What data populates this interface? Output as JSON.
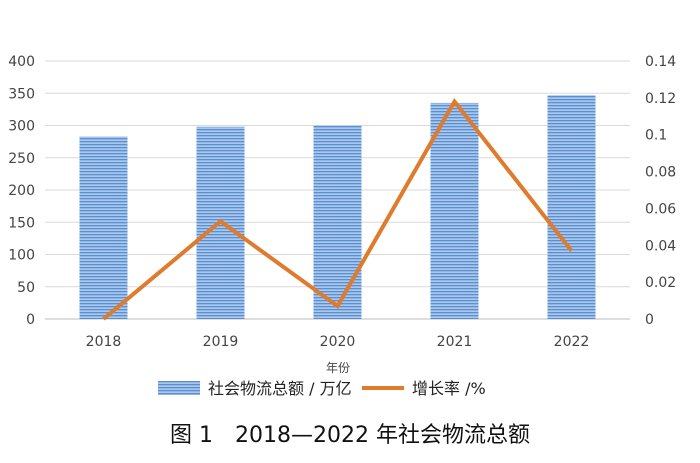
{
  "chart_data": {
    "type": "bar+line",
    "categories": [
      "2018",
      "2019",
      "2020",
      "2021",
      "2022"
    ],
    "xlabel": "年份",
    "y_left": {
      "ticks": [
        "0",
        "50",
        "100",
        "150",
        "200",
        "250",
        "300",
        "350",
        "400"
      ],
      "ylim": [
        0,
        400
      ]
    },
    "y_right": {
      "ticks": [
        "0",
        "0.02",
        "0.04",
        "0.06",
        "0.08",
        "0.1",
        "0.12",
        "0.14"
      ],
      "ylim": [
        0,
        0.14
      ]
    },
    "series": [
      {
        "name": "社会物流总额 / 万亿",
        "type": "bar",
        "axis": "left",
        "color": "#6fa0d8",
        "values": [
          283,
          298,
          300,
          335,
          347
        ]
      },
      {
        "name": "增长率 /%",
        "type": "line",
        "axis": "right",
        "color": "#e07a2c",
        "values": [
          0.0,
          0.053,
          0.007,
          0.118,
          0.037
        ]
      }
    ],
    "grid": true,
    "legend": "bottom",
    "caption": "图 1　2018—2022 年社会物流总额"
  }
}
